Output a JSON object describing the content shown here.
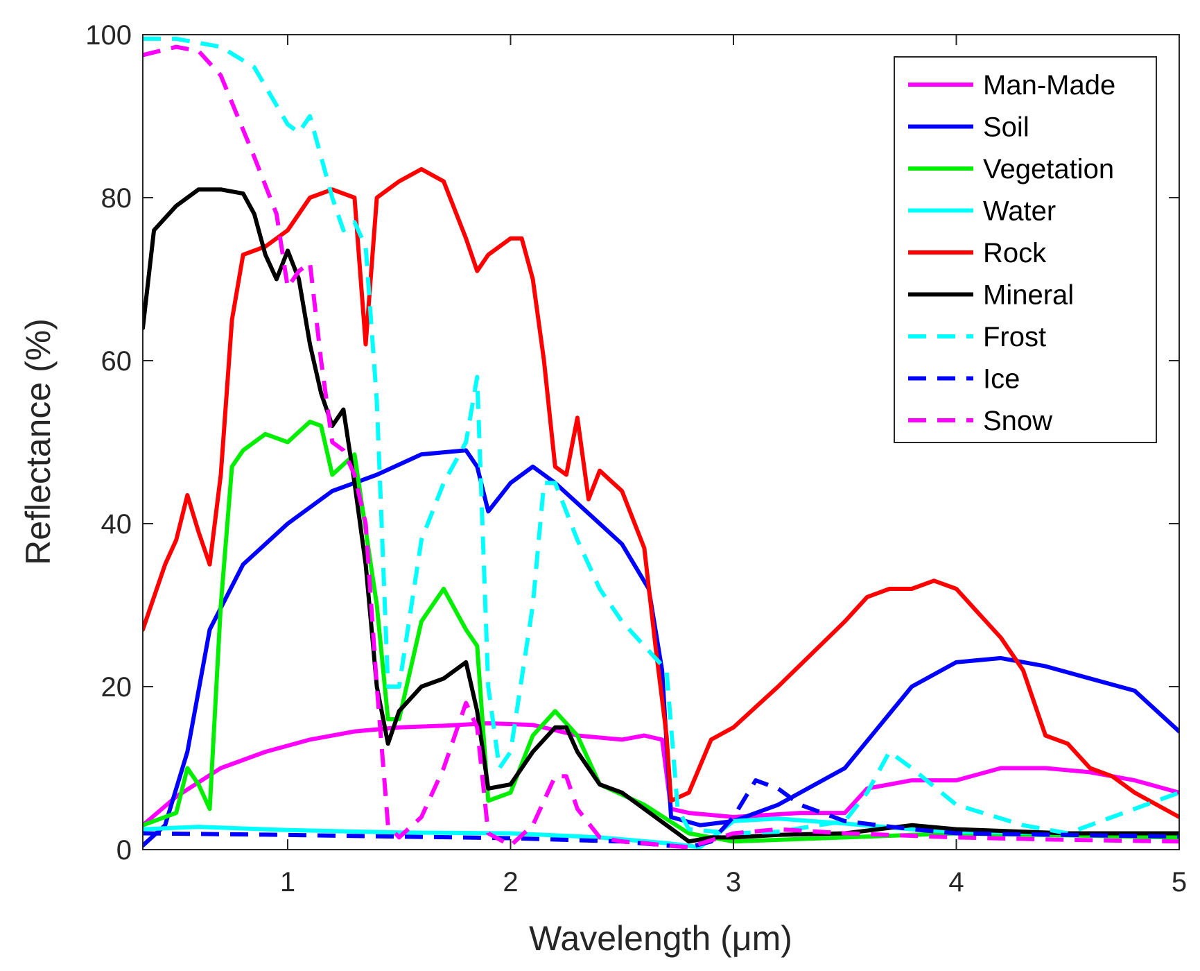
{
  "chart_data": {
    "type": "line",
    "title": "",
    "xlabel": "Wavelength (μm)",
    "ylabel": "Reflectance (%)",
    "xlim": [
      0.35,
      5
    ],
    "ylim": [
      0,
      100
    ],
    "xticks": [
      1,
      2,
      3,
      4,
      5
    ],
    "yticks": [
      0,
      20,
      40,
      60,
      80,
      100
    ],
    "grid": false,
    "legend_position": "top-right",
    "series": [
      {
        "name": "Man-Made",
        "color": "#ff00ff",
        "style": "solid",
        "x": [
          0.35,
          0.5,
          0.7,
          0.9,
          1.1,
          1.3,
          1.5,
          1.7,
          1.9,
          2.1,
          2.3,
          2.5,
          2.6,
          2.68,
          2.72,
          2.8,
          3.0,
          3.3,
          3.5,
          3.6,
          3.8,
          4.0,
          4.2,
          4.4,
          4.6,
          4.8,
          5.0
        ],
        "y": [
          3,
          6.5,
          10,
          12,
          13.5,
          14.5,
          15,
          15.2,
          15.5,
          15.3,
          14,
          13.5,
          14,
          13.5,
          5,
          4.5,
          4,
          4.5,
          4.5,
          7.5,
          8.5,
          8.5,
          10,
          10,
          9.5,
          8.5,
          7
        ]
      },
      {
        "name": "Soil",
        "color": "#0000ff",
        "style": "solid",
        "x": [
          0.35,
          0.45,
          0.55,
          0.65,
          0.8,
          1.0,
          1.2,
          1.4,
          1.6,
          1.8,
          1.85,
          1.9,
          2.0,
          2.1,
          2.2,
          2.4,
          2.5,
          2.62,
          2.68,
          2.72,
          2.85,
          3.0,
          3.2,
          3.5,
          3.8,
          4.0,
          4.2,
          4.4,
          4.6,
          4.8,
          5.0
        ],
        "y": [
          0.5,
          3,
          12,
          27,
          35,
          40,
          44,
          46,
          48.5,
          49,
          47,
          41.5,
          45,
          47,
          45,
          40,
          37.5,
          32,
          22,
          4,
          3,
          3.5,
          5.5,
          10,
          20,
          23,
          23.5,
          22.5,
          21,
          19.5,
          14.5
        ]
      },
      {
        "name": "Vegetation",
        "color": "#00ee00",
        "style": "solid",
        "x": [
          0.35,
          0.5,
          0.55,
          0.6,
          0.65,
          0.7,
          0.75,
          0.8,
          0.9,
          1.0,
          1.1,
          1.15,
          1.2,
          1.3,
          1.4,
          1.45,
          1.5,
          1.6,
          1.7,
          1.8,
          1.85,
          1.9,
          2.0,
          2.1,
          2.2,
          2.3,
          2.4,
          2.6,
          2.8,
          3.0,
          3.5,
          4.0,
          5.0
        ],
        "y": [
          3,
          4.5,
          10,
          8,
          5,
          30,
          47,
          49,
          51,
          50,
          52.5,
          52,
          46,
          48.5,
          30,
          16,
          16,
          28,
          32,
          27,
          25,
          6,
          7,
          14,
          17,
          14,
          8,
          5.5,
          2,
          1,
          1.5,
          2,
          1.5
        ]
      },
      {
        "name": "Water",
        "color": "#00ffff",
        "style": "solid",
        "x": [
          0.35,
          0.6,
          0.8,
          1.0,
          1.5,
          2.0,
          2.4,
          2.7,
          2.85,
          3.0,
          3.2,
          3.5,
          3.8,
          4.0,
          4.5,
          5.0
        ],
        "y": [
          2.5,
          2.8,
          2.6,
          2.4,
          2.1,
          2.0,
          1.5,
          0.8,
          0.3,
          3.5,
          3.8,
          3.2,
          2.5,
          2.2,
          2.0,
          2.0
        ]
      },
      {
        "name": "Rock",
        "color": "#ff0000",
        "style": "solid",
        "x": [
          0.35,
          0.45,
          0.5,
          0.55,
          0.6,
          0.65,
          0.7,
          0.75,
          0.8,
          0.9,
          1.0,
          1.1,
          1.2,
          1.3,
          1.35,
          1.4,
          1.45,
          1.5,
          1.6,
          1.7,
          1.8,
          1.85,
          1.9,
          2.0,
          2.05,
          2.1,
          2.15,
          2.2,
          2.25,
          2.3,
          2.35,
          2.4,
          2.5,
          2.6,
          2.65,
          2.7,
          2.72,
          2.8,
          2.9,
          3.0,
          3.2,
          3.5,
          3.6,
          3.7,
          3.8,
          3.9,
          4.0,
          4.1,
          4.2,
          4.3,
          4.4,
          4.5,
          4.6,
          4.7,
          4.8,
          4.9,
          5.0
        ],
        "y": [
          27,
          35,
          38,
          43.5,
          39,
          35,
          46,
          65,
          73,
          74,
          76,
          80,
          81,
          80,
          62,
          80,
          81,
          82,
          83.5,
          82,
          75,
          71,
          73,
          75,
          75,
          70,
          60,
          47,
          46,
          53,
          43,
          46.5,
          44,
          37,
          25,
          14,
          6,
          7,
          13.5,
          15,
          20,
          28,
          31,
          32,
          32,
          33,
          32,
          29,
          26,
          22,
          14,
          13,
          10,
          9,
          7,
          5.5,
          4
        ]
      },
      {
        "name": "Mineral",
        "color": "#000000",
        "style": "solid",
        "x": [
          0.35,
          0.4,
          0.5,
          0.6,
          0.7,
          0.8,
          0.85,
          0.9,
          0.95,
          1.0,
          1.05,
          1.1,
          1.15,
          1.2,
          1.25,
          1.3,
          1.35,
          1.4,
          1.45,
          1.5,
          1.6,
          1.7,
          1.8,
          1.85,
          1.9,
          2.0,
          2.1,
          2.2,
          2.25,
          2.3,
          2.4,
          2.5,
          2.6,
          2.7,
          2.75,
          2.8,
          2.9,
          3.0,
          3.2,
          3.5,
          3.8,
          4.0,
          4.5,
          5.0
        ],
        "y": [
          64,
          76,
          79,
          81,
          81,
          80.5,
          78,
          73,
          70,
          73.5,
          70,
          62,
          56,
          52,
          54,
          45,
          35,
          20,
          13,
          17,
          20,
          21,
          23,
          17,
          7.5,
          8,
          12,
          15,
          15,
          12,
          8,
          7,
          5,
          3,
          2,
          1,
          1.5,
          1.5,
          1.8,
          2,
          3,
          2.5,
          2,
          2
        ]
      },
      {
        "name": "Frost",
        "color": "#00ffff",
        "style": "dashed",
        "x": [
          0.35,
          0.5,
          0.6,
          0.7,
          0.85,
          1.0,
          1.05,
          1.1,
          1.2,
          1.25,
          1.3,
          1.35,
          1.4,
          1.45,
          1.5,
          1.6,
          1.7,
          1.8,
          1.85,
          1.9,
          1.95,
          2.0,
          2.1,
          2.15,
          2.2,
          2.3,
          2.4,
          2.5,
          2.6,
          2.7,
          2.75,
          2.8,
          3.0,
          3.2,
          3.5,
          3.6,
          3.7,
          3.8,
          4.0,
          4.3,
          4.5,
          4.7,
          5.0
        ],
        "y": [
          99.5,
          99.5,
          99,
          98.5,
          96,
          89,
          88,
          90,
          80,
          76,
          77,
          74,
          55,
          20,
          20,
          38,
          45,
          50,
          58,
          20,
          10,
          12,
          30,
          45,
          45,
          38,
          32,
          28,
          25,
          22,
          5,
          2.5,
          2,
          2.2,
          3.5,
          7,
          12,
          10,
          5.5,
          3,
          2,
          4,
          7
        ]
      },
      {
        "name": "Ice",
        "color": "#0000ff",
        "style": "dashed",
        "x": [
          0.35,
          1.0,
          1.5,
          2.0,
          2.5,
          2.7,
          2.8,
          2.9,
          3.0,
          3.1,
          3.2,
          3.3,
          3.5,
          3.8,
          4.0,
          4.5,
          5.0
        ],
        "y": [
          2,
          1.8,
          1.6,
          1.4,
          1,
          0.5,
          0.3,
          1,
          4,
          8.5,
          7.5,
          5.5,
          3.5,
          2.5,
          2,
          1.8,
          1.6
        ]
      },
      {
        "name": "Snow",
        "color": "#ff00ff",
        "style": "dashed",
        "x": [
          0.35,
          0.5,
          0.6,
          0.7,
          0.85,
          0.95,
          1.0,
          1.05,
          1.1,
          1.15,
          1.2,
          1.25,
          1.3,
          1.35,
          1.4,
          1.45,
          1.5,
          1.6,
          1.7,
          1.8,
          1.85,
          1.9,
          2.0,
          2.1,
          2.2,
          2.25,
          2.3,
          2.4,
          2.5,
          2.6,
          2.7,
          2.8,
          3.0,
          3.2,
          3.5,
          4.0,
          4.5,
          5.0
        ],
        "y": [
          97.5,
          98.5,
          98,
          95,
          85,
          78,
          69,
          71,
          72,
          60,
          50,
          49,
          46,
          40,
          20,
          3,
          1.5,
          4,
          10,
          18,
          15,
          2,
          0.5,
          3,
          9,
          9,
          5,
          1.5,
          1,
          0.8,
          0.5,
          0.3,
          2,
          2.5,
          2,
          1.5,
          1.2,
          1
        ]
      }
    ]
  }
}
